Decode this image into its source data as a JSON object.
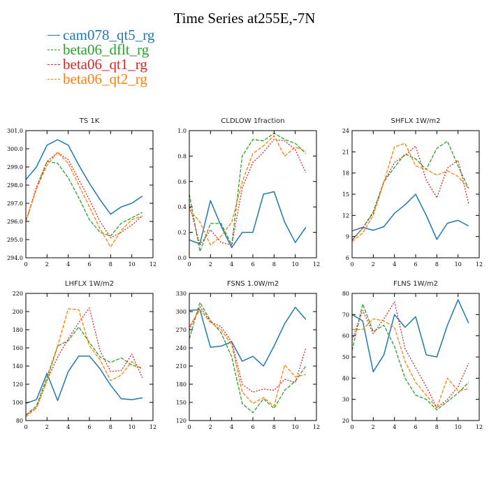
{
  "title": "Time Series at255E,-7N",
  "colors": {
    "cam078_qt5_rg": "#1f77b4",
    "beta06_dflt_rg": "#2ca02c",
    "beta06_qt1_rg": "#d62728",
    "beta06_qt2_rg": "#ff7f0e"
  },
  "legend": [
    {
      "name": "cam078_qt5_rg",
      "color": "#1f77b4",
      "style": "solid"
    },
    {
      "name": "beta06_dflt_rg",
      "color": "#2ca02c",
      "style": "dashed"
    },
    {
      "name": "beta06_qt1_rg",
      "color": "#d62728",
      "style": "dotted"
    },
    {
      "name": "beta06_qt2_rg",
      "color": "#ff7f0e",
      "style": "dashed"
    }
  ],
  "chart_data": [
    {
      "type": "line",
      "title": "TS   1K",
      "x": [
        0,
        1,
        2,
        3,
        4,
        5,
        6,
        7,
        8,
        9,
        10,
        11
      ],
      "xlim": [
        0,
        12
      ],
      "xticks": [
        0,
        2,
        4,
        6,
        8,
        10,
        12
      ],
      "ylim": [
        294.0,
        301.0
      ],
      "yticks": [
        "294.0",
        "295.0",
        "296.0",
        "297.0",
        "298.0",
        "299.0",
        "300.0",
        "301.0"
      ],
      "series": [
        {
          "name": "cam078_qt5_rg",
          "values": [
            298.3,
            299.0,
            300.2,
            300.5,
            300.2,
            299.1,
            298.1,
            297.2,
            296.4,
            296.8,
            297.0,
            297.4
          ]
        },
        {
          "name": "beta06_dflt_rg",
          "values": [
            296.0,
            297.8,
            299.3,
            299.2,
            298.4,
            297.3,
            296.1,
            295.4,
            295.2,
            295.9,
            296.2,
            296.5
          ]
        },
        {
          "name": "beta06_qt1_rg",
          "values": [
            296.0,
            297.9,
            299.3,
            299.8,
            299.4,
            298.3,
            297.2,
            296.0,
            295.1,
            295.4,
            295.8,
            296.3
          ]
        },
        {
          "name": "beta06_qt2_rg",
          "values": [
            296.0,
            297.8,
            299.1,
            299.8,
            299.2,
            298.0,
            296.8,
            295.6,
            294.6,
            295.5,
            296.1,
            296.3
          ]
        }
      ]
    },
    {
      "type": "line",
      "title": "CLDLOW   1fraction",
      "x": [
        0,
        1,
        2,
        3,
        4,
        5,
        6,
        7,
        8,
        9,
        10,
        11
      ],
      "xlim": [
        0,
        12
      ],
      "xticks": [
        0,
        2,
        4,
        6,
        8,
        10,
        12
      ],
      "ylim": [
        0.0,
        1.0
      ],
      "yticks": [
        "0.0",
        "0.2",
        "0.4",
        "0.6",
        "0.8",
        "1.0"
      ],
      "series": [
        {
          "name": "cam078_qt5_rg",
          "values": [
            0.14,
            0.11,
            0.45,
            0.25,
            0.08,
            0.2,
            0.2,
            0.5,
            0.52,
            0.28,
            0.12,
            0.24
          ]
        },
        {
          "name": "beta06_dflt_rg",
          "values": [
            0.5,
            0.05,
            0.27,
            0.27,
            0.1,
            0.8,
            0.93,
            0.92,
            0.98,
            0.93,
            0.9,
            0.82
          ]
        },
        {
          "name": "beta06_qt1_rg",
          "values": [
            0.42,
            0.1,
            0.22,
            0.12,
            0.1,
            0.55,
            0.75,
            0.83,
            0.93,
            0.92,
            0.85,
            0.67
          ]
        },
        {
          "name": "beta06_qt2_rg",
          "values": [
            0.38,
            0.28,
            0.1,
            0.17,
            0.28,
            0.6,
            0.82,
            0.88,
            0.96,
            0.8,
            0.87,
            0.84
          ]
        }
      ]
    },
    {
      "type": "line",
      "title": "SHFLX   1W/m2",
      "x": [
        0,
        1,
        2,
        3,
        4,
        5,
        6,
        7,
        8,
        9,
        10,
        11
      ],
      "xlim": [
        0,
        12
      ],
      "xticks": [
        0,
        2,
        4,
        6,
        8,
        10,
        12
      ],
      "ylim": [
        6,
        24
      ],
      "yticks": [
        "6",
        "9",
        "12",
        "15",
        "18",
        "21",
        "24"
      ],
      "series": [
        {
          "name": "cam078_qt5_rg",
          "values": [
            9.8,
            10.3,
            9.9,
            10.4,
            12.3,
            13.5,
            15.0,
            12.0,
            8.6,
            10.9,
            11.3,
            10.5
          ]
        },
        {
          "name": "beta06_dflt_rg",
          "values": [
            8.5,
            10.2,
            12.5,
            16.8,
            18.8,
            20.7,
            20.0,
            18.5,
            21.5,
            22.5,
            19.0,
            15.8
          ]
        },
        {
          "name": "beta06_qt1_rg",
          "values": [
            8.5,
            10.2,
            12.3,
            16.7,
            19.5,
            20.5,
            21.8,
            17.0,
            14.5,
            18.7,
            19.8,
            13.7
          ]
        },
        {
          "name": "beta06_qt2_rg",
          "values": [
            8.3,
            9.5,
            12.0,
            16.7,
            21.7,
            22.2,
            19.0,
            18.5,
            17.7,
            18.3,
            17.5,
            15.8
          ]
        }
      ]
    },
    {
      "type": "line",
      "title": "LHFLX   1W/m2",
      "x": [
        0,
        1,
        2,
        3,
        4,
        5,
        6,
        7,
        8,
        9,
        10,
        11
      ],
      "xlim": [
        0,
        12
      ],
      "xticks": [
        0,
        2,
        4,
        6,
        8,
        10,
        12
      ],
      "ylim": [
        80,
        220
      ],
      "yticks": [
        "80",
        "100",
        "120",
        "140",
        "160",
        "180",
        "200",
        "220"
      ],
      "series": [
        {
          "name": "cam078_qt5_rg",
          "values": [
            99,
            103,
            132,
            102,
            134,
            151,
            151,
            137,
            119,
            104,
            103,
            105
          ]
        },
        {
          "name": "beta06_dflt_rg",
          "values": [
            86,
            96,
            128,
            162,
            168,
            183,
            166,
            150,
            144,
            149,
            141,
            138
          ]
        },
        {
          "name": "beta06_qt1_rg",
          "values": [
            86,
            94,
            124,
            150,
            170,
            188,
            204,
            157,
            134,
            135,
            153,
            127
          ]
        },
        {
          "name": "beta06_qt2_rg",
          "values": [
            84,
            94,
            124,
            162,
            203,
            202,
            162,
            147,
            124,
            130,
            145,
            136
          ]
        }
      ]
    },
    {
      "type": "line",
      "title": "FSNS   1.0W/m2",
      "x": [
        0,
        1,
        2,
        3,
        4,
        5,
        6,
        7,
        8,
        9,
        10,
        11
      ],
      "xlim": [
        0,
        12
      ],
      "xticks": [
        0,
        2,
        4,
        6,
        8,
        10,
        12
      ],
      "ylim": [
        120,
        330
      ],
      "yticks": [
        "120",
        "150",
        "180",
        "210",
        "240",
        "270",
        "300",
        "330"
      ],
      "series": [
        {
          "name": "cam078_qt5_rg",
          "values": [
            302,
            303,
            241,
            243,
            250,
            218,
            226,
            210,
            243,
            280,
            307,
            287
          ]
        },
        {
          "name": "beta06_dflt_rg",
          "values": [
            255,
            315,
            285,
            265,
            225,
            148,
            133,
            156,
            140,
            170,
            185,
            210
          ]
        },
        {
          "name": "beta06_qt1_rg",
          "values": [
            270,
            308,
            283,
            275,
            250,
            180,
            167,
            172,
            170,
            188,
            183,
            240
          ]
        },
        {
          "name": "beta06_qt2_rg",
          "values": [
            275,
            303,
            282,
            270,
            245,
            167,
            148,
            158,
            144,
            212,
            192,
            196
          ]
        }
      ]
    },
    {
      "type": "line",
      "title": "FLNS   1W/m2",
      "x": [
        0,
        1,
        2,
        3,
        4,
        5,
        6,
        7,
        8,
        9,
        10,
        11
      ],
      "xlim": [
        0,
        12
      ],
      "xticks": [
        0,
        2,
        4,
        6,
        8,
        10,
        12
      ],
      "ylim": [
        20,
        80
      ],
      "yticks": [
        "20",
        "30",
        "40",
        "50",
        "60",
        "70",
        "80"
      ],
      "series": [
        {
          "name": "cam078_qt5_rg",
          "values": [
            70,
            67,
            43,
            51,
            70,
            64,
            69,
            51,
            50,
            65,
            77,
            66
          ]
        },
        {
          "name": "beta06_dflt_rg",
          "values": [
            53,
            75,
            62,
            65,
            55,
            40,
            32,
            30,
            25,
            29,
            33,
            38
          ]
        },
        {
          "name": "beta06_qt1_rg",
          "values": [
            58,
            72,
            61,
            68,
            76,
            54,
            45,
            36,
            26,
            30,
            36,
            47
          ]
        },
        {
          "name": "beta06_qt2_rg",
          "values": [
            63,
            63,
            68,
            67,
            64,
            48,
            38,
            32,
            26,
            40,
            34,
            35
          ]
        }
      ]
    }
  ]
}
